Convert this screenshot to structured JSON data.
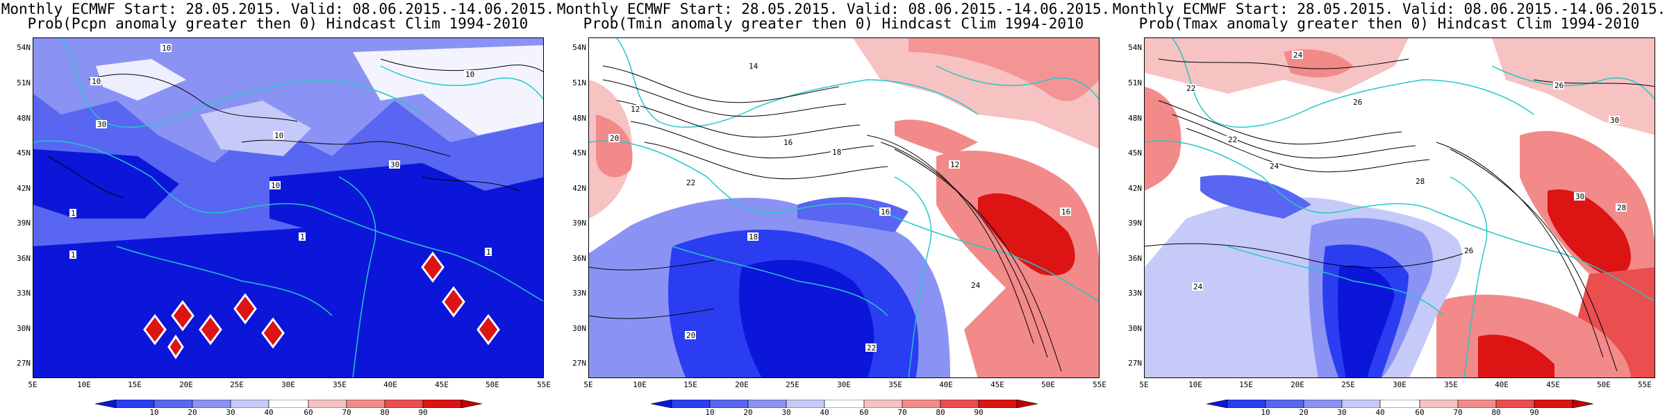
{
  "panels": [
    {
      "id": "pcpn",
      "title_line1": "Monthly ECMWF Start: 28.05.2015. Valid: 08.06.2015.-14.06.2015.",
      "title_line2": "Prob(Pcpn anomaly greater then 0) Hindcast Clim 1994-2010",
      "contour_labels": [
        "10",
        "10",
        "30",
        "10",
        "30",
        "10",
        "1",
        "1",
        "1",
        "1",
        "10"
      ]
    },
    {
      "id": "tmin",
      "title_line1": "Monthly ECMWF Start: 28.05.2015. Valid: 08.06.2015.-14.06.2015.",
      "title_line2": "Prob(Tmin anomaly greater then 0) Hindcast Clim 1994-2010",
      "contour_labels": [
        "14",
        "12",
        "16",
        "18",
        "20",
        "22",
        "18",
        "16",
        "12",
        "24",
        "20",
        "22",
        "16"
      ]
    },
    {
      "id": "tmax",
      "title_line1": "Monthly ECMWF Start: 28.05.2015. Valid: 08.06.2015.-14.06.2015.",
      "title_line2": "Prob(Tmax anomaly greater then 0) Hindcast Clim 1994-2010",
      "contour_labels": [
        "22",
        "24",
        "26",
        "22",
        "24",
        "28",
        "26",
        "30",
        "24",
        "30",
        "28",
        "26"
      ]
    }
  ],
  "lat_labels": [
    "54N",
    "51N",
    "48N",
    "45N",
    "42N",
    "39N",
    "36N",
    "33N",
    "30N",
    "27N"
  ],
  "lon_labels": [
    "5E",
    "10E",
    "15E",
    "20E",
    "25E",
    "30E",
    "35E",
    "40E",
    "45E",
    "50E",
    "55E"
  ],
  "colorbar": {
    "labels": [
      "10",
      "20",
      "30",
      "40",
      "60",
      "70",
      "80",
      "90"
    ],
    "colors": [
      "#0b16d9",
      "#2b3df0",
      "#5866f2",
      "#8a93f4",
      "#c6caf8",
      "#ffffff",
      "#f7c2c2",
      "#f28a8a",
      "#eb4e4e",
      "#dc1414",
      "#c00000"
    ]
  },
  "coastline_color": "#22c8c8"
}
